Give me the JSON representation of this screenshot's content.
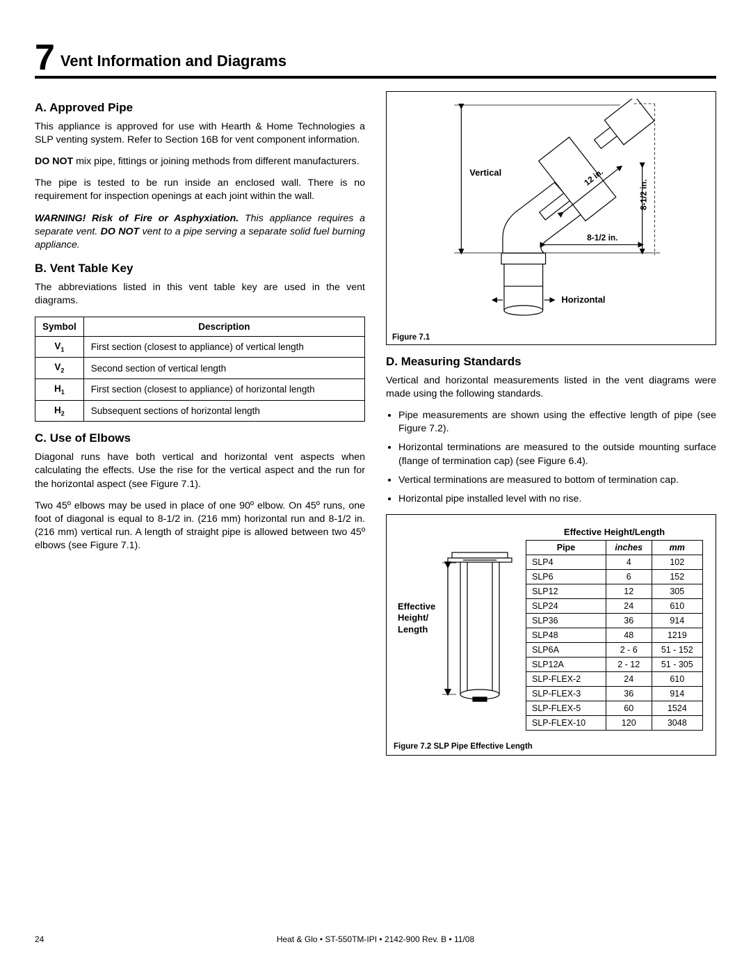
{
  "section": {
    "number": "7",
    "title": "Vent Information and Diagrams"
  },
  "colA": {
    "a": {
      "head": "A.  Approved Pipe",
      "p1": "This appliance is approved for use with Hearth & Home Technologies a SLP venting system.  Refer to Section 16B for vent component information.",
      "p2_strong": "DO NOT",
      "p2_rest": " mix pipe, fittings or joining methods from different manufacturers.",
      "p3": "The pipe is tested to be run inside an enclosed wall. There is no requirement for inspection openings at each joint within the wall.",
      "warn_strong": "WARNING! Risk of Fire or Asphyxiation.",
      "warn_mid": " This appliance requires a separate vent. ",
      "warn_strong2": "DO NOT",
      "warn_rest": " vent to a pipe serving a separate solid fuel burning appliance."
    },
    "b": {
      "head": "B.  Vent Table Key",
      "p1": "The abbreviations listed in this vent table key are used in the vent diagrams.",
      "sym_h": "Symbol",
      "desc_h": "Description",
      "rows": [
        {
          "sym": "V",
          "sub": "1",
          "desc": "First section (closest to appliance) of vertical length"
        },
        {
          "sym": "V",
          "sub": "2",
          "desc": "Second section of vertical length"
        },
        {
          "sym": "H",
          "sub": "1",
          "desc": "First section (closest to appliance) of horizontal length"
        },
        {
          "sym": "H",
          "sub": "2",
          "desc": "Subsequent sections of horizontal length"
        }
      ]
    },
    "c": {
      "head": "C.  Use of Elbows",
      "p1": "Diagonal runs have both vertical and horizontal vent aspects when calculating the effects. Use the rise for the vertical aspect and the run for the horizontal aspect (see Figure 7.1).",
      "p2": "Two 45º elbows may be used in place of one 90º elbow. On 45º runs, one foot of diagonal is equal to 8-1/2 in. (216 mm) horizontal run and 8-1/2 in. (216 mm) vertical run. A length of straight pipe is allowed between two 45º elbows (see Figure 7.1)."
    }
  },
  "colB": {
    "fig71": {
      "caption": "Figure 7.1",
      "label_vertical": "Vertical",
      "label_horizontal": "Horizontal",
      "dim_diag": "12 in.",
      "dim_h": "8-1/2 in.",
      "dim_v": "8-1/2 in."
    },
    "d": {
      "head": "D.  Measuring Standards",
      "p1": "Vertical and horizontal measurements listed in the vent diagrams were made using the following standards.",
      "bullets": [
        "Pipe measurements are shown using the effective length of pipe (see Figure 7.2).",
        "Horizontal terminations are measured to the outside mounting surface (flange of termination cap) (see Figure 6.4).",
        "Vertical terminations are measured to bottom of termination cap.",
        "Horizontal pipe installed level with no rise."
      ]
    },
    "fig72": {
      "caption": "Figure 7.2  SLP Pipe Effective Length",
      "left_label1": "Effective",
      "left_label2": "Height/",
      "left_label3": "Length",
      "head_big": "Effective Height/Length",
      "col_pipe": "Pipe",
      "col_in": "inches",
      "col_mm": "mm",
      "rows": [
        {
          "pipe": "SLP4",
          "in": "4",
          "mm": "102"
        },
        {
          "pipe": "SLP6",
          "in": "6",
          "mm": "152"
        },
        {
          "pipe": "SLP12",
          "in": "12",
          "mm": "305"
        },
        {
          "pipe": "SLP24",
          "in": "24",
          "mm": "610"
        },
        {
          "pipe": "SLP36",
          "in": "36",
          "mm": "914"
        },
        {
          "pipe": "SLP48",
          "in": "48",
          "mm": "1219"
        },
        {
          "pipe": "SLP6A",
          "in": "2 - 6",
          "mm": "51 - 152"
        },
        {
          "pipe": "SLP12A",
          "in": "2 - 12",
          "mm": "51 - 305"
        },
        {
          "pipe": "SLP-FLEX-2",
          "in": "24",
          "mm": "610"
        },
        {
          "pipe": "SLP-FLEX-3",
          "in": "36",
          "mm": "914"
        },
        {
          "pipe": "SLP-FLEX-5",
          "in": "60",
          "mm": "1524"
        },
        {
          "pipe": "SLP-FLEX-10",
          "in": "120",
          "mm": "3048"
        }
      ]
    }
  },
  "footer": {
    "page": "24",
    "center": "Heat & Glo  •  ST-550TM-IPI  •  2142-900 Rev. B  •  11/08"
  }
}
